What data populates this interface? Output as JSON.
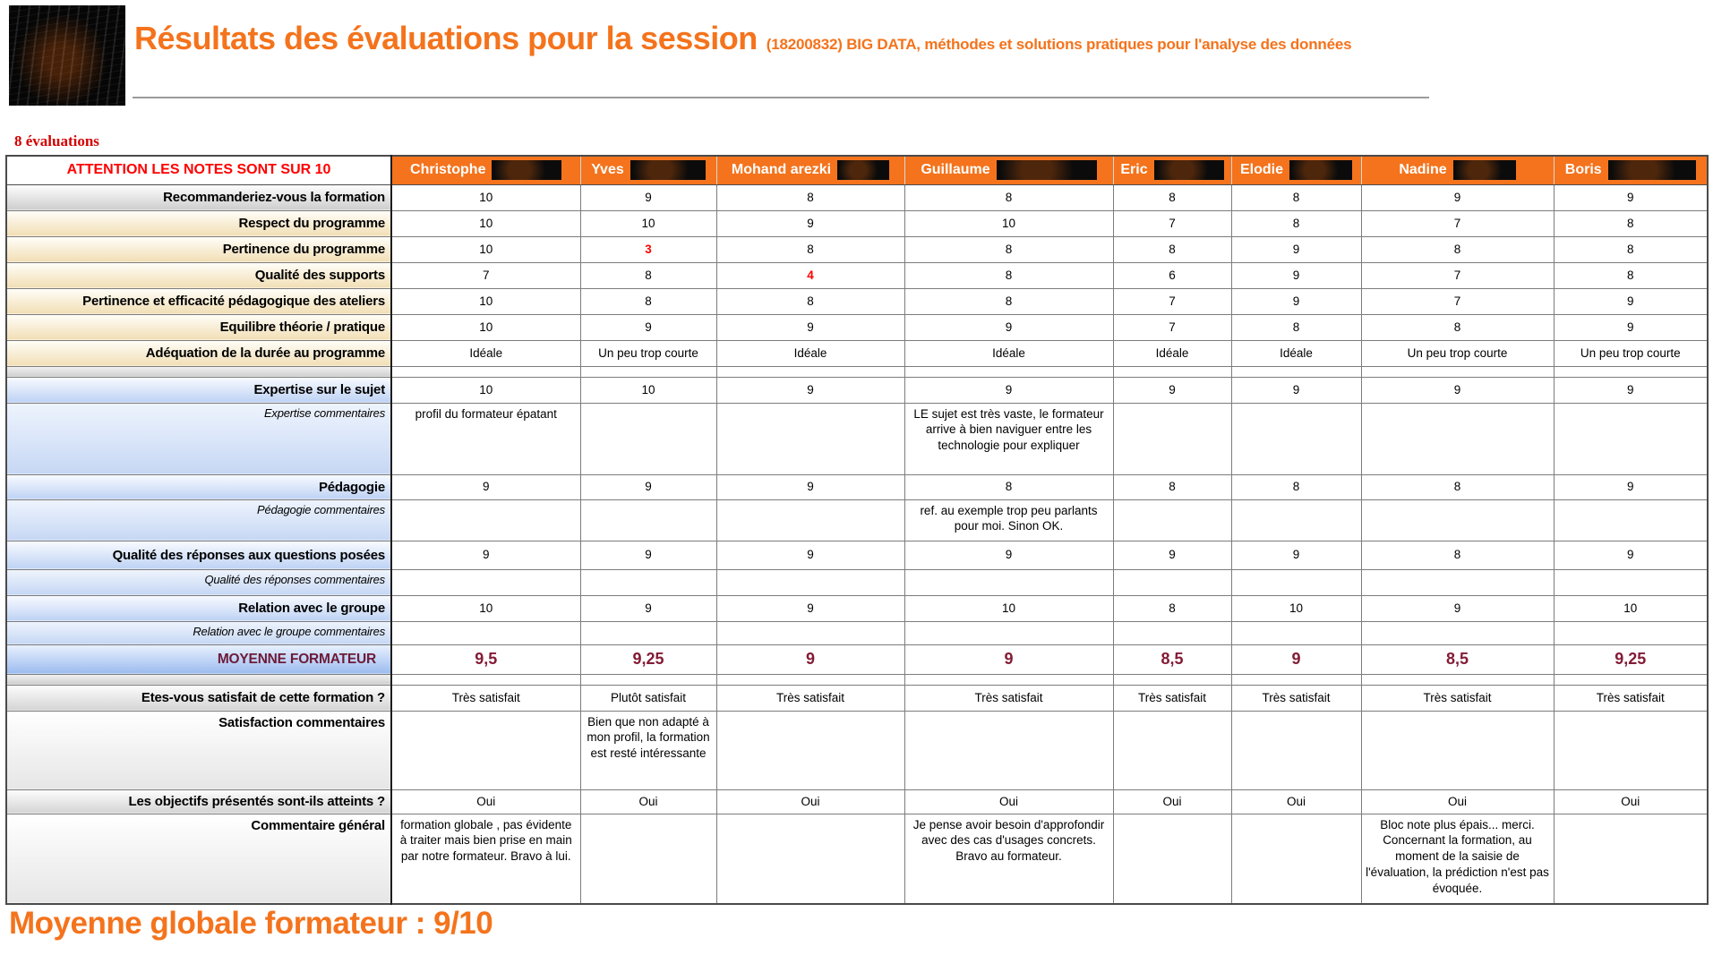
{
  "header": {
    "title": "Résultats des évaluations pour la session",
    "subtitle": "(18200832) BIG DATA, méthodes et solutions pratiques pour l'analyse des données"
  },
  "evaluation_count": "8 évaluations",
  "table": {
    "warning_header": "ATTENTION LES NOTES SONT SUR 10",
    "evaluators": [
      {
        "first_name": "Christophe",
        "last_name_redacted": true
      },
      {
        "first_name": "Yves",
        "last_name_redacted": true
      },
      {
        "first_name": "Mohand arezki",
        "last_name_redacted": true
      },
      {
        "first_name": "Guillaume",
        "last_name_redacted": true
      },
      {
        "first_name": "Eric",
        "last_name_redacted": true
      },
      {
        "first_name": "Elodie",
        "last_name_redacted": true
      },
      {
        "first_name": "Nadine",
        "last_name_redacted": true
      },
      {
        "first_name": "Boris",
        "last_name_redacted": true
      }
    ],
    "rows": [
      {
        "label": "Recommanderiez-vous la formation",
        "values": [
          "10",
          "9",
          "8",
          "8",
          "8",
          "8",
          "9",
          "9"
        ]
      },
      {
        "label": "Respect du programme",
        "values": [
          "10",
          "10",
          "9",
          "10",
          "7",
          "8",
          "7",
          "8"
        ]
      },
      {
        "label": "Pertinence du programme",
        "values": [
          "10",
          "3",
          "8",
          "8",
          "8",
          "9",
          "8",
          "8"
        ],
        "red_value_indexes": [
          1
        ]
      },
      {
        "label": "Qualité des supports",
        "values": [
          "7",
          "8",
          "4",
          "8",
          "6",
          "9",
          "7",
          "8"
        ],
        "red_value_indexes": [
          2
        ]
      },
      {
        "label": "Pertinence et efficacité pédagogique des ateliers",
        "values": [
          "10",
          "8",
          "8",
          "8",
          "7",
          "9",
          "7",
          "9"
        ]
      },
      {
        "label": "Equilibre théorie / pratique",
        "values": [
          "10",
          "9",
          "9",
          "9",
          "7",
          "8",
          "8",
          "9"
        ]
      },
      {
        "label": "Adéquation de la durée au programme",
        "values": [
          "Idéale",
          "Un peu trop courte",
          "Idéale",
          "Idéale",
          "Idéale",
          "Idéale",
          "Un peu trop courte",
          "Un peu trop courte"
        ]
      },
      {
        "label": "Expertise sur le sujet",
        "values": [
          "10",
          "10",
          "9",
          "9",
          "9",
          "9",
          "9",
          "9"
        ]
      },
      {
        "label": "Expertise commentaires",
        "values": [
          "profil du formateur épatant",
          "",
          "",
          "LE sujet est très vaste, le formateur arrive à bien naviguer entre les technologie pour expliquer",
          "",
          "",
          "",
          ""
        ]
      },
      {
        "label": "Pédagogie",
        "values": [
          "9",
          "9",
          "9",
          "8",
          "8",
          "8",
          "8",
          "9"
        ]
      },
      {
        "label": "Pédagogie commentaires",
        "values": [
          "",
          "",
          "",
          "ref. au exemple trop peu parlants pour moi. Sinon OK.",
          "",
          "",
          "",
          ""
        ]
      },
      {
        "label": "Qualité des réponses aux questions posées",
        "values": [
          "9",
          "9",
          "9",
          "9",
          "9",
          "9",
          "8",
          "9"
        ]
      },
      {
        "label": "Qualité des réponses commentaires",
        "values": [
          "",
          "",
          "",
          "",
          "",
          "",
          "",
          ""
        ]
      },
      {
        "label": "Relation avec le groupe",
        "values": [
          "10",
          "9",
          "9",
          "10",
          "8",
          "10",
          "9",
          "10"
        ]
      },
      {
        "label": "Relation avec le groupe commentaires",
        "values": [
          "",
          "",
          "",
          "",
          "",
          "",
          "",
          ""
        ]
      },
      {
        "label": "MOYENNE FORMATEUR",
        "values": [
          "9,5",
          "9,25",
          "9",
          "9",
          "8,5",
          "9",
          "8,5",
          "9,25"
        ]
      },
      {
        "label": "Etes-vous satisfait de cette formation ?",
        "values": [
          "Très satisfait",
          "Plutôt satisfait",
          "Très satisfait",
          "Très satisfait",
          "Très satisfait",
          "Très satisfait",
          "Très satisfait",
          "Très satisfait"
        ]
      },
      {
        "label": "Satisfaction commentaires",
        "values": [
          "",
          "Bien que non adapté à mon profil, la formation est resté intéressante",
          "",
          "",
          "",
          "",
          "",
          ""
        ]
      },
      {
        "label": "Les objectifs présentés sont-ils atteints ?",
        "values": [
          "Oui",
          "Oui",
          "Oui",
          "Oui",
          "Oui",
          "Oui",
          "Oui",
          "Oui"
        ]
      },
      {
        "label": "Commentaire général",
        "values": [
          "formation globale , pas évidente à traiter mais bien prise en main par notre formateur. Bravo à lui.",
          "",
          "",
          "Je pense avoir besoin d'approfondir avec des cas d'usages concrets. Bravo au formateur.",
          "",
          "",
          "Bloc note plus épais... merci. Concernant la formation, au moment de la saisie de l'évaluation, la prédiction n'est pas évoquée.",
          ""
        ]
      }
    ]
  },
  "footer": {
    "global_average_label": "Moyenne globale formateur : 9/10"
  },
  "colors": {
    "accent_orange": "#f4731c",
    "warning_red": "#ff0000",
    "low_score_red": "#ff0000",
    "average_maroon": "#831c36",
    "eval_count_red": "#d40000"
  }
}
